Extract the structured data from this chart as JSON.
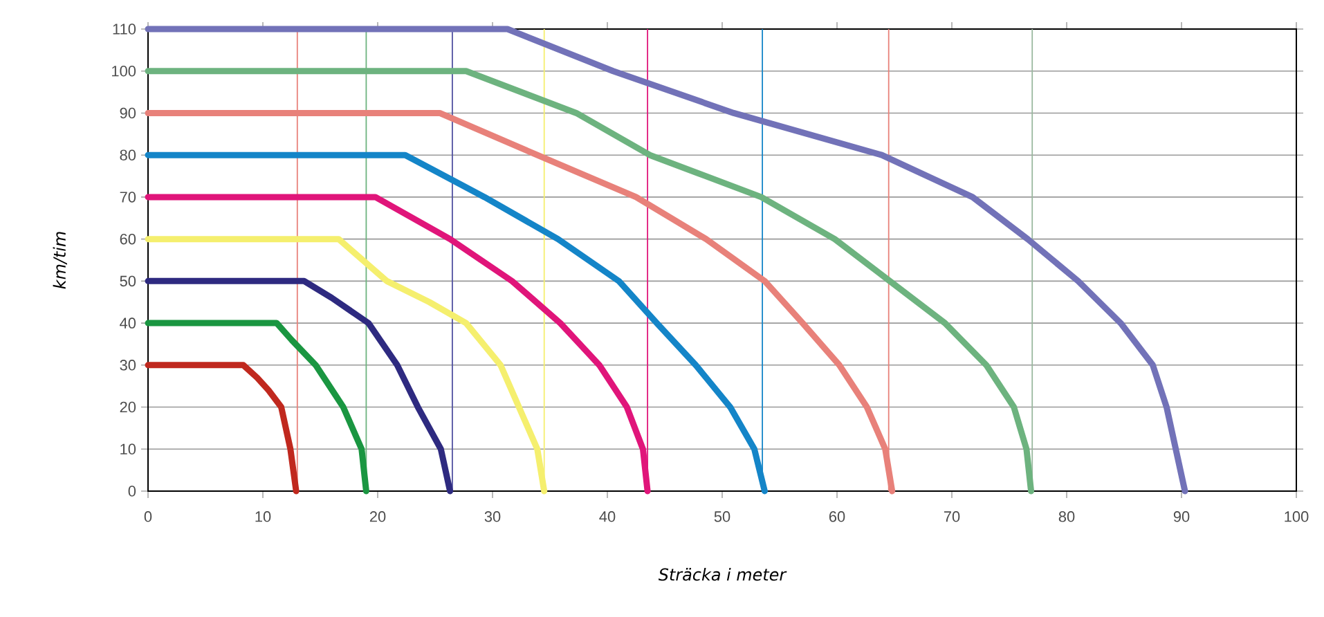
{
  "chart_data": {
    "type": "line",
    "xlabel": "Sträcka i meter",
    "ylabel": "km/tim",
    "xlim": [
      0,
      100
    ],
    "ylim": [
      0,
      110
    ],
    "xticks": [
      0,
      10,
      20,
      30,
      40,
      50,
      60,
      70,
      80,
      90,
      100
    ],
    "yticks": [
      0,
      10,
      20,
      30,
      40,
      50,
      60,
      70,
      80,
      90,
      100,
      110
    ],
    "grid": "y",
    "legend": false,
    "marker": "none",
    "line_style": "solid",
    "series": [
      {
        "color": "#c0281e",
        "x": [
          0,
          8.3,
          9.5,
          10.5,
          11.6,
          12.4,
          12.9
        ],
        "values": [
          30,
          30,
          27,
          24,
          20,
          10,
          0
        ]
      },
      {
        "color": "#1a9641",
        "x": [
          0,
          11.2,
          12.5,
          14.6,
          17,
          18.6,
          19
        ],
        "values": [
          40,
          40,
          36,
          30,
          20,
          10,
          0
        ]
      },
      {
        "color": "#2e2a80",
        "x": [
          0,
          13.6,
          16,
          19.2,
          21.7,
          23.5,
          25.5,
          26.3
        ],
        "values": [
          50,
          50,
          46,
          40,
          30,
          20,
          10,
          0
        ]
      },
      {
        "color": "#f5ef6e",
        "x": [
          0,
          16.6,
          20.8,
          24.5,
          27.7,
          30.7,
          32.3,
          33.9,
          34.5
        ],
        "values": [
          60,
          60,
          50,
          45,
          40,
          30,
          20,
          10,
          0
        ]
      },
      {
        "color": "#e0157a",
        "x": [
          0,
          19.8,
          26.3,
          31.7,
          35.9,
          39.3,
          41.7,
          43.1,
          43.5
        ],
        "values": [
          70,
          70,
          60,
          50,
          40,
          30,
          20,
          10,
          0
        ]
      },
      {
        "color": "#1485c8",
        "x": [
          0,
          22.4,
          29.3,
          35.7,
          41,
          44.3,
          47.7,
          50.7,
          52.8,
          53.7
        ],
        "values": [
          80,
          80,
          70,
          60,
          50,
          40,
          30,
          20,
          10,
          0
        ]
      },
      {
        "color": "#e8817a",
        "x": [
          0,
          25.4,
          33.9,
          42.5,
          48.6,
          53.7,
          57,
          60.2,
          62.6,
          64.2,
          64.8
        ],
        "values": [
          90,
          90,
          80,
          70,
          60,
          50,
          40,
          30,
          20,
          10,
          0
        ]
      },
      {
        "color": "#6db37f",
        "x": [
          0,
          27.7,
          37.3,
          43.7,
          53.4,
          59.8,
          64.6,
          69.4,
          73,
          75.4,
          76.5,
          76.9
        ],
        "values": [
          100,
          100,
          90,
          80,
          70,
          60,
          50,
          40,
          30,
          20,
          10,
          0
        ]
      },
      {
        "color": "#7272b8",
        "x": [
          0,
          31.3,
          40.5,
          51,
          63.9,
          71.8,
          76.6,
          81,
          84.7,
          87.5,
          88.7,
          89.5,
          90.3
        ],
        "values": [
          110,
          110,
          100,
          90,
          80,
          70,
          60,
          50,
          40,
          30,
          20,
          10,
          0
        ]
      }
    ],
    "ref_lines": [
      {
        "axis": "x",
        "value": 13,
        "color": "#e8817a"
      },
      {
        "axis": "x",
        "value": 19,
        "color": "#6db37f"
      },
      {
        "axis": "x",
        "value": 26.5,
        "color": "#5050a0"
      },
      {
        "axis": "x",
        "value": 34.5,
        "color": "#f5ef6e"
      },
      {
        "axis": "x",
        "value": 43.5,
        "color": "#e0157a"
      },
      {
        "axis": "x",
        "value": 53.5,
        "color": "#1485c8"
      },
      {
        "axis": "x",
        "value": 64.5,
        "color": "#e8817a"
      },
      {
        "axis": "x",
        "value": 77,
        "color": "#9ab89f"
      }
    ]
  }
}
